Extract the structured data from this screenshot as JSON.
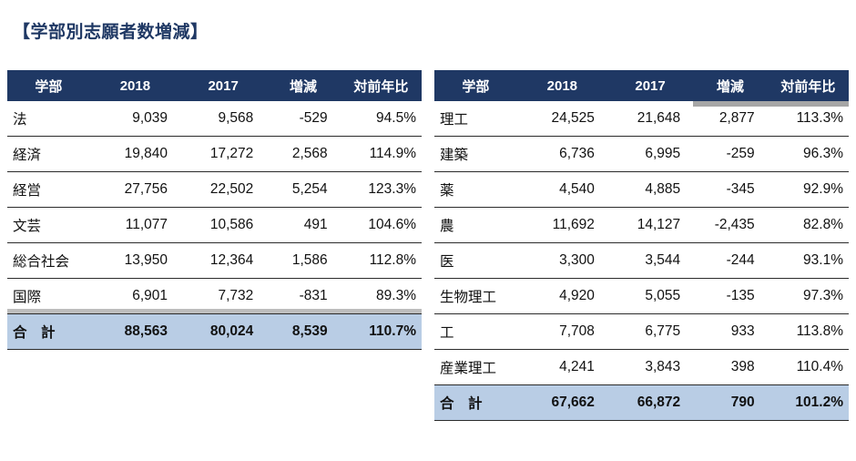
{
  "title": "【学部別志願者数増減】",
  "colors": {
    "header_bg": "#1F3864",
    "header_text": "#FFFFFF",
    "total_row_bg": "#B9CDE5",
    "title_text": "#1F3864"
  },
  "chart_data": [
    {
      "type": "table",
      "title": "学部別志願者数増減（左表）",
      "columns": [
        "学部",
        "2018",
        "2017",
        "増減",
        "対前年比"
      ],
      "rows": [
        [
          "法",
          "9,039",
          "9,568",
          "-529",
          "94.5%"
        ],
        [
          "経済",
          "19,840",
          "17,272",
          "2,568",
          "114.9%"
        ],
        [
          "経営",
          "27,756",
          "22,502",
          "5,254",
          "123.3%"
        ],
        [
          "文芸",
          "11,077",
          "10,586",
          "491",
          "104.6%"
        ],
        [
          "総合社会",
          "13,950",
          "12,364",
          "1,586",
          "112.8%"
        ],
        [
          "国際",
          "6,901",
          "7,732",
          "-831",
          "89.3%"
        ]
      ],
      "total_row": [
        "合　計",
        "88,563",
        "80,024",
        "8,539",
        "110.7%"
      ]
    },
    {
      "type": "table",
      "title": "学部別志願者数増減（右表）",
      "columns": [
        "学部",
        "2018",
        "2017",
        "増減",
        "対前年比"
      ],
      "rows": [
        [
          "理工",
          "24,525",
          "21,648",
          "2,877",
          "113.3%"
        ],
        [
          "建築",
          "6,736",
          "6,995",
          "-259",
          "96.3%"
        ],
        [
          "薬",
          "4,540",
          "4,885",
          "-345",
          "92.9%"
        ],
        [
          "農",
          "11,692",
          "14,127",
          "-2,435",
          "82.8%"
        ],
        [
          "医",
          "3,300",
          "3,544",
          "-244",
          "93.1%"
        ],
        [
          "生物理工",
          "4,920",
          "5,055",
          "-135",
          "97.3%"
        ],
        [
          "工",
          "7,708",
          "6,775",
          "933",
          "113.8%"
        ],
        [
          "産業理工",
          "4,241",
          "3,843",
          "398",
          "110.4%"
        ]
      ],
      "total_row": [
        "合　計",
        "67,662",
        "66,872",
        "790",
        "101.2%"
      ]
    }
  ]
}
